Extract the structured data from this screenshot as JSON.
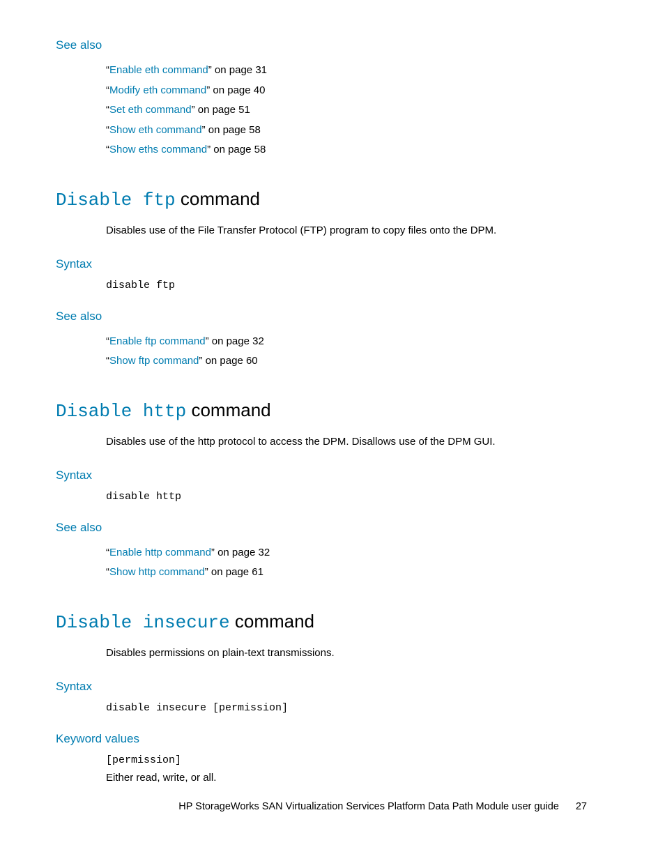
{
  "colors": {
    "accent": "#007cb0",
    "text": "#000000",
    "background": "#ffffff"
  },
  "typography": {
    "body_family": "Arial, Helvetica, sans-serif",
    "mono_family": "Courier New, monospace",
    "heading_size_pt": 20,
    "subhead_size_pt": 13,
    "body_size_pt": 11
  },
  "see_also_top": {
    "heading": "See also",
    "items": [
      {
        "quote_open": "“",
        "link": "Enable eth command",
        "suffix": "” on page 31"
      },
      {
        "quote_open": "“",
        "link": "Modify eth command",
        "suffix": "” on page 40"
      },
      {
        "quote_open": "“",
        "link": "Set eth command",
        "suffix": "” on page 51"
      },
      {
        "quote_open": "“",
        "link": "Show eth command",
        "suffix": "” on page 58"
      },
      {
        "quote_open": "“",
        "link": "Show eths command",
        "suffix": "” on page 58"
      }
    ]
  },
  "sections": [
    {
      "title_mono": "Disable ftp",
      "title_rest": " command",
      "desc": "Disables use of the File Transfer Protocol (FTP) program to copy files onto the DPM.",
      "syntax_heading": "Syntax",
      "syntax": "disable ftp",
      "see_also_heading": "See also",
      "see_also": [
        {
          "quote_open": "“",
          "link": "Enable ftp command",
          "suffix": "” on page 32"
        },
        {
          "quote_open": "“",
          "link": "Show ftp command",
          "suffix": "” on page 60"
        }
      ]
    },
    {
      "title_mono": "Disable http",
      "title_rest": " command",
      "desc": "Disables use of the http protocol to access the DPM. Disallows use of the DPM GUI.",
      "syntax_heading": "Syntax",
      "syntax": "disable http",
      "see_also_heading": "See also",
      "see_also": [
        {
          "quote_open": "“",
          "link": "Enable http command",
          "suffix": "” on page 32"
        },
        {
          "quote_open": "“",
          "link": "Show http command",
          "suffix": "” on page 61"
        }
      ]
    },
    {
      "title_mono": "Disable insecure",
      "title_rest": " command",
      "desc": "Disables permissions on plain-text transmissions.",
      "syntax_heading": "Syntax",
      "syntax": "disable insecure [permission]",
      "keyword_heading": "Keyword values",
      "keyword_name": "[permission]",
      "keyword_desc": "Either read, write, or all."
    }
  ],
  "footer": {
    "text": "HP StorageWorks SAN Virtualization Services Platform Data Path Module user guide",
    "page": "27"
  }
}
